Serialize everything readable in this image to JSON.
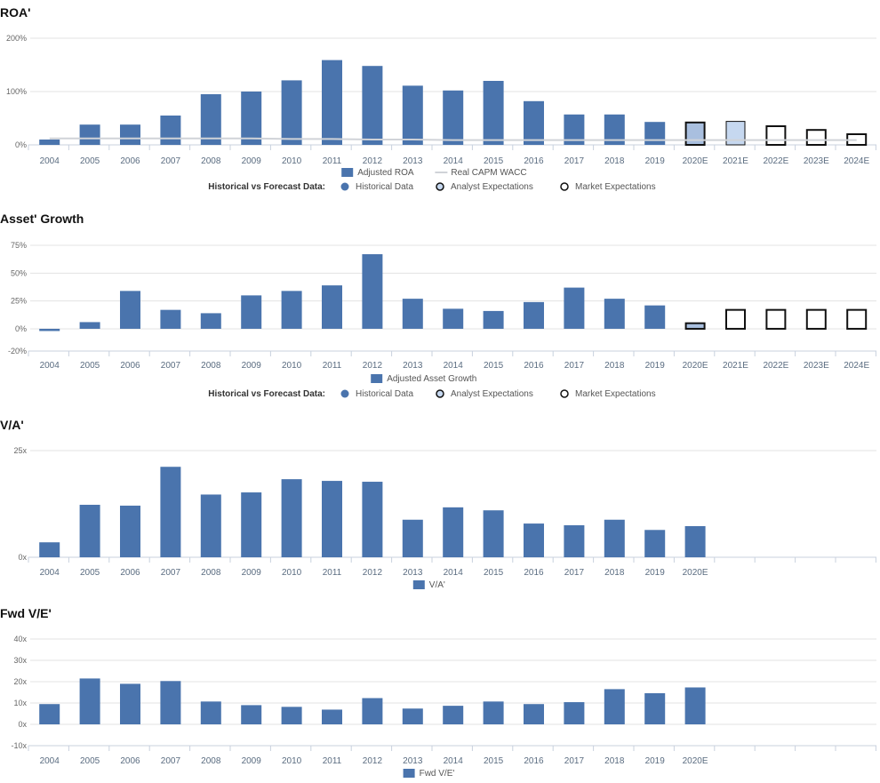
{
  "chart_data": [
    {
      "id": "roa",
      "type": "bar",
      "title": "ROA'",
      "categories": [
        "2004",
        "2005",
        "2006",
        "2007",
        "2008",
        "2009",
        "2010",
        "2011",
        "2012",
        "2013",
        "2014",
        "2015",
        "2016",
        "2017",
        "2018",
        "2019",
        "2020E",
        "2021E",
        "2022E",
        "2023E",
        "2024E"
      ],
      "series": [
        {
          "name": "Adjusted ROA",
          "values": [
            10,
            38,
            38,
            55,
            95,
            100,
            121,
            159,
            148,
            111,
            102,
            120,
            82,
            57,
            57,
            43,
            42,
            44,
            35,
            28,
            20
          ]
        },
        {
          "name": "Real CAPM WACC",
          "type": "line",
          "values": [
            12,
            12,
            12,
            12,
            12,
            12,
            11,
            11,
            10,
            10,
            9,
            9,
            9,
            9,
            9,
            9,
            9,
            9,
            9,
            9,
            9
          ]
        }
      ],
      "styles": [
        "historical",
        "historical",
        "historical",
        "historical",
        "historical",
        "historical",
        "historical",
        "historical",
        "historical",
        "historical",
        "historical",
        "historical",
        "historical",
        "historical",
        "historical",
        "historical",
        "analyst-market",
        "analyst",
        "market",
        "market",
        "market"
      ],
      "ylim": [
        0,
        200
      ],
      "yticks": [
        {
          "v": 0,
          "label": "0%"
        },
        {
          "v": 100,
          "label": "100%"
        },
        {
          "v": 200,
          "label": "200%"
        }
      ],
      "grid": true,
      "legend_placement": "bottom",
      "legend_items": [
        {
          "label": "Adjusted ROA",
          "kind": "bar"
        },
        {
          "label": "Real CAPM WACC",
          "kind": "line"
        }
      ],
      "forecast_legend": {
        "title": "Historical vs Forecast Data:",
        "items": [
          {
            "label": "Historical Data",
            "kind": "historical"
          },
          {
            "label": "Analyst Expectations",
            "kind": "analyst"
          },
          {
            "label": "Market Expectations",
            "kind": "market"
          }
        ]
      }
    },
    {
      "id": "asset-growth",
      "type": "bar",
      "title": "Asset' Growth",
      "categories": [
        "2004",
        "2005",
        "2006",
        "2007",
        "2008",
        "2009",
        "2010",
        "2011",
        "2012",
        "2013",
        "2014",
        "2015",
        "2016",
        "2017",
        "2018",
        "2019",
        "2020E",
        "2021E",
        "2022E",
        "2023E",
        "2024E"
      ],
      "series": [
        {
          "name": "Adjusted Asset Growth",
          "values": [
            -2,
            6,
            34,
            17,
            14,
            30,
            34,
            39,
            67,
            27,
            18,
            16,
            24,
            37,
            27,
            21,
            5,
            17,
            17,
            17,
            17
          ]
        }
      ],
      "styles": [
        "historical",
        "historical",
        "historical",
        "historical",
        "historical",
        "historical",
        "historical",
        "historical",
        "historical",
        "historical",
        "historical",
        "historical",
        "historical",
        "historical",
        "historical",
        "historical",
        "analyst-market",
        "market",
        "market",
        "market",
        "market"
      ],
      "ylim": [
        -20,
        75
      ],
      "yticks": [
        {
          "v": -20,
          "label": "-20%"
        },
        {
          "v": 0,
          "label": "0%"
        },
        {
          "v": 25,
          "label": "25%"
        },
        {
          "v": 50,
          "label": "50%"
        },
        {
          "v": 75,
          "label": "75%"
        }
      ],
      "grid": true,
      "legend_placement": "bottom",
      "legend_items": [
        {
          "label": "Adjusted Asset Growth",
          "kind": "bar"
        }
      ],
      "forecast_legend": {
        "title": "Historical vs Forecast Data:",
        "items": [
          {
            "label": "Historical Data",
            "kind": "historical"
          },
          {
            "label": "Analyst Expectations",
            "kind": "analyst"
          },
          {
            "label": "Market Expectations",
            "kind": "market"
          }
        ]
      }
    },
    {
      "id": "va",
      "type": "bar",
      "title": "V/A'",
      "categories": [
        "2004",
        "2005",
        "2006",
        "2007",
        "2008",
        "2009",
        "2010",
        "2011",
        "2012",
        "2013",
        "2014",
        "2015",
        "2016",
        "2017",
        "2018",
        "2019",
        "2020E",
        "",
        "",
        "",
        ""
      ],
      "series": [
        {
          "name": "V/A'",
          "values": [
            3.5,
            12.3,
            12.1,
            21.2,
            14.7,
            15.2,
            18.3,
            17.9,
            17.7,
            8.8,
            11.7,
            11.0,
            7.9,
            7.5,
            8.8,
            6.4,
            7.3,
            null,
            null,
            null,
            null
          ]
        }
      ],
      "styles": [
        "historical",
        "historical",
        "historical",
        "historical",
        "historical",
        "historical",
        "historical",
        "historical",
        "historical",
        "historical",
        "historical",
        "historical",
        "historical",
        "historical",
        "historical",
        "historical",
        "historical",
        "none",
        "none",
        "none",
        "none"
      ],
      "ylim": [
        0,
        25
      ],
      "yticks": [
        {
          "v": 0,
          "label": "0x"
        },
        {
          "v": 25,
          "label": "25x"
        }
      ],
      "grid": true,
      "legend_placement": "bottom",
      "legend_items": [
        {
          "label": "V/A'",
          "kind": "bar"
        }
      ]
    },
    {
      "id": "fwd-ve",
      "type": "bar",
      "title": "Fwd V/E'",
      "categories": [
        "2004",
        "2005",
        "2006",
        "2007",
        "2008",
        "2009",
        "2010",
        "2011",
        "2012",
        "2013",
        "2014",
        "2015",
        "2016",
        "2017",
        "2018",
        "2019",
        "2020E",
        "",
        "",
        "",
        ""
      ],
      "series": [
        {
          "name": "Fwd V/E'",
          "values": [
            9.5,
            21.5,
            19.0,
            20.3,
            10.7,
            9.0,
            8.2,
            6.9,
            12.3,
            7.4,
            8.7,
            10.7,
            9.5,
            10.4,
            16.5,
            14.6,
            17.3,
            null,
            null,
            null,
            null
          ]
        }
      ],
      "styles": [
        "historical",
        "historical",
        "historical",
        "historical",
        "historical",
        "historical",
        "historical",
        "historical",
        "historical",
        "historical",
        "historical",
        "historical",
        "historical",
        "historical",
        "historical",
        "historical",
        "historical",
        "none",
        "none",
        "none",
        "none"
      ],
      "ylim": [
        -10,
        40
      ],
      "yticks": [
        {
          "v": -10,
          "label": "-10x"
        },
        {
          "v": 0,
          "label": "0x"
        },
        {
          "v": 10,
          "label": "10x"
        },
        {
          "v": 20,
          "label": "20x"
        },
        {
          "v": 30,
          "label": "30x"
        },
        {
          "v": 40,
          "label": "40x"
        }
      ],
      "grid": true,
      "legend_placement": "bottom",
      "legend_items": [
        {
          "label": "Fwd V/E'",
          "kind": "bar"
        }
      ]
    }
  ],
  "colors": {
    "bar": "#4a74ad",
    "analyst_fill": "#c6d8f0",
    "analyst_market_fill": "#a9bfdf",
    "market_stroke": "#111111",
    "wacc_line": "#d0d3d8",
    "grid": "#e3e3e3",
    "axis": "#c8d1de"
  }
}
